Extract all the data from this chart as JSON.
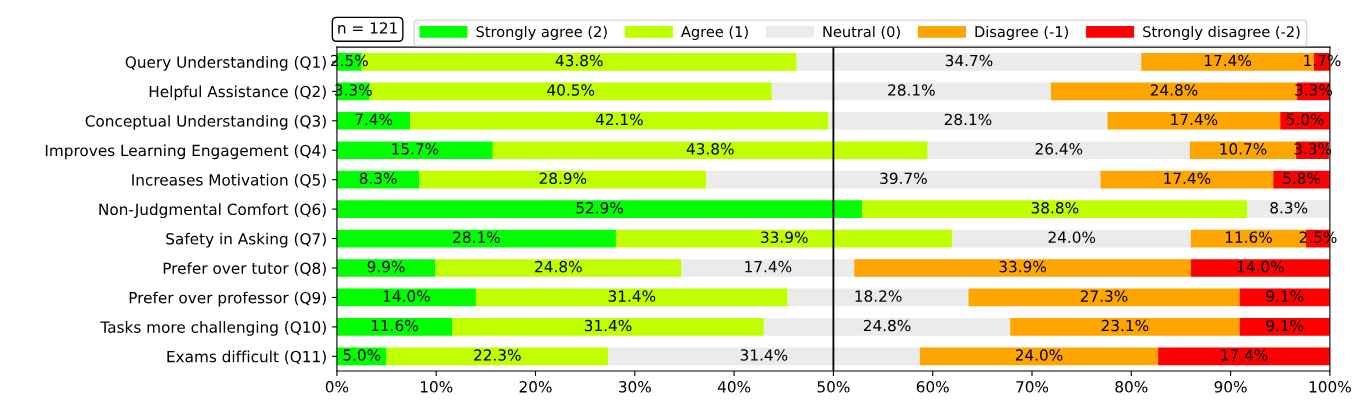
{
  "chart_data": {
    "type": "bar",
    "orientation": "horizontal",
    "stacked": true,
    "categories": [
      "Query Understanding (Q1)",
      "Helpful Assistance (Q2)",
      "Conceptual Understanding (Q3)",
      "Improves Learning Engagement (Q4)",
      "Increases Motivation (Q5)",
      "Non-Judgmental Comfort (Q6)",
      "Safety in Asking (Q7)",
      "Prefer over tutor (Q8)",
      "Prefer over professor (Q9)",
      "Tasks more challenging (Q10)",
      "Exams difficult (Q11)"
    ],
    "series": [
      {
        "name": "Strongly agree (2)",
        "color": "#00ff00",
        "values": [
          2.5,
          3.3,
          7.4,
          15.7,
          8.3,
          52.9,
          28.1,
          9.9,
          14.0,
          11.6,
          5.0
        ],
        "value_labels": [
          "2.5%",
          "3.3%",
          "7.4%",
          "15.7%",
          "8.3%",
          "52.9%",
          "28.1%",
          "9.9%",
          "14.0%",
          "11.6%",
          "5.0%"
        ]
      },
      {
        "name": "Agree (1)",
        "color": "#bfff00",
        "values": [
          43.8,
          40.5,
          42.1,
          43.8,
          28.9,
          38.8,
          33.9,
          24.8,
          31.4,
          31.4,
          22.3
        ],
        "value_labels": [
          "43.8%",
          "40.5%",
          "42.1%",
          "43.8%",
          "28.9%",
          "38.8%",
          "33.9%",
          "24.8%",
          "31.4%",
          "31.4%",
          "22.3%"
        ]
      },
      {
        "name": "Neutral (0)",
        "color": "#ebebeb",
        "values": [
          34.7,
          28.1,
          28.1,
          26.4,
          39.7,
          8.3,
          24.0,
          17.4,
          18.2,
          24.8,
          31.4
        ],
        "value_labels": [
          "34.7%",
          "28.1%",
          "28.1%",
          "26.4%",
          "39.7%",
          "8.3%",
          "24.0%",
          "17.4%",
          "18.2%",
          "24.8%",
          "31.4%"
        ]
      },
      {
        "name": "Disagree (-1)",
        "color": "#ffa500",
        "values": [
          17.4,
          24.8,
          17.4,
          10.7,
          17.4,
          0,
          11.6,
          33.9,
          27.3,
          23.1,
          24.0
        ],
        "value_labels": [
          "17.4%",
          "24.8%",
          "17.4%",
          "10.7%",
          "17.4%",
          null,
          "11.6%",
          "33.9%",
          "27.3%",
          "23.1%",
          "24.0%"
        ]
      },
      {
        "name": "Strongly disagree (-2)",
        "color": "#ff0000",
        "values": [
          1.7,
          3.3,
          5.0,
          3.3,
          5.8,
          0,
          2.5,
          14.0,
          9.1,
          9.1,
          17.4
        ],
        "value_labels": [
          "1.7%",
          "3.3%",
          "5.0%",
          "3.3%",
          "5.8%",
          null,
          "2.5%",
          "14.0%",
          "9.1%",
          "9.1%",
          "17.4%"
        ]
      }
    ],
    "xlim": [
      0,
      100
    ],
    "xticks": [
      {
        "value": 0,
        "label": "0%"
      },
      {
        "value": 10,
        "label": "10%"
      },
      {
        "value": 20,
        "label": "20%"
      },
      {
        "value": 30,
        "label": "30%"
      },
      {
        "value": 40,
        "label": "40%"
      },
      {
        "value": 50,
        "label": "50%"
      },
      {
        "value": 60,
        "label": "60%"
      },
      {
        "value": 70,
        "label": "70%"
      },
      {
        "value": 80,
        "label": "80%"
      },
      {
        "value": 90,
        "label": "90%"
      },
      {
        "value": 100,
        "label": "100%"
      }
    ],
    "ref_lines": [
      {
        "axis": "x",
        "value": 50,
        "color": "#000000"
      }
    ],
    "annotations": [
      "n = 121"
    ],
    "legend": "top",
    "grid": false
  }
}
